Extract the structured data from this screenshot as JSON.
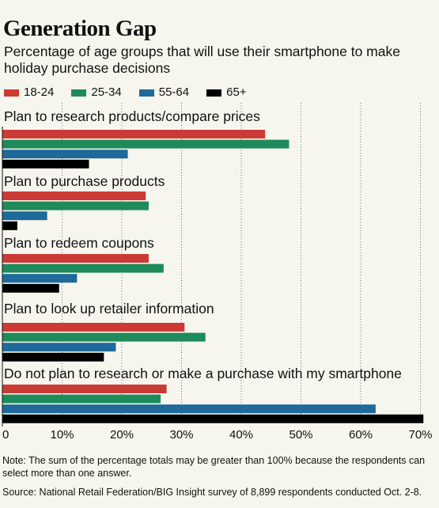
{
  "chart_data": {
    "type": "bar",
    "orientation": "horizontal",
    "title": "Generation Gap",
    "subtitle": "Percentage of age groups that will use their smartphone to make holiday purchase decisions",
    "categories": [
      "Plan to research products/compare prices",
      "Plan to purchase products",
      "Plan to redeem coupons",
      "Plan to look up retailer information",
      "Do not plan to research or make a purchase with my smartphone"
    ],
    "series": [
      {
        "name": "18-24",
        "color": "#cc3a36",
        "values": [
          44,
          24,
          24.5,
          30.5,
          27.5
        ]
      },
      {
        "name": "25-34",
        "color": "#1f8a5a",
        "values": [
          48,
          24.5,
          27,
          34,
          26.5
        ]
      },
      {
        "name": "55-64",
        "color": "#1e6a9a",
        "values": [
          21,
          7.5,
          12.5,
          19,
          62.5
        ]
      },
      {
        "name": "65+",
        "color": "#000000",
        "values": [
          14.5,
          2.5,
          9.5,
          17,
          70.5
        ]
      }
    ],
    "xlim": [
      0,
      70
    ],
    "xticks": [
      "0",
      "10%",
      "20%",
      "30%",
      "40%",
      "50%",
      "60%",
      "70%"
    ],
    "grid": true,
    "legend": "top-left"
  },
  "note": "Note: The sum of the percentage totals may be greater than 100% because the respondents can select more than one answer.",
  "source": "Source: National Retail Federation/BIG Insight survey of 8,899 respondents conducted Oct. 2-8."
}
